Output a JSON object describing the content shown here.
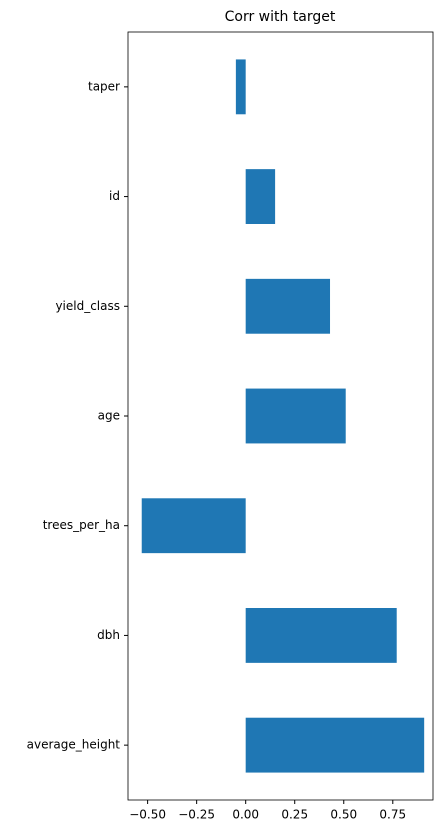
{
  "chart_data": {
    "type": "barh",
    "title": "Corr with target",
    "categories": [
      "average_height",
      "dbh",
      "trees_per_ha",
      "age",
      "yield_class",
      "id",
      "taper"
    ],
    "values": [
      0.91,
      0.77,
      -0.53,
      0.51,
      0.43,
      0.15,
      -0.05
    ],
    "color": "#1f77b4",
    "xlim": [
      -0.6,
      0.955
    ],
    "xticks": [
      {
        "value": -0.5,
        "label": "−0.50"
      },
      {
        "value": -0.25,
        "label": "−0.25"
      },
      {
        "value": 0,
        "label": "0.00"
      },
      {
        "value": 0.25,
        "label": "0.25"
      },
      {
        "value": 0.5,
        "label": "0.50"
      },
      {
        "value": 0.75,
        "label": "0.75"
      }
    ],
    "grid": false
  }
}
